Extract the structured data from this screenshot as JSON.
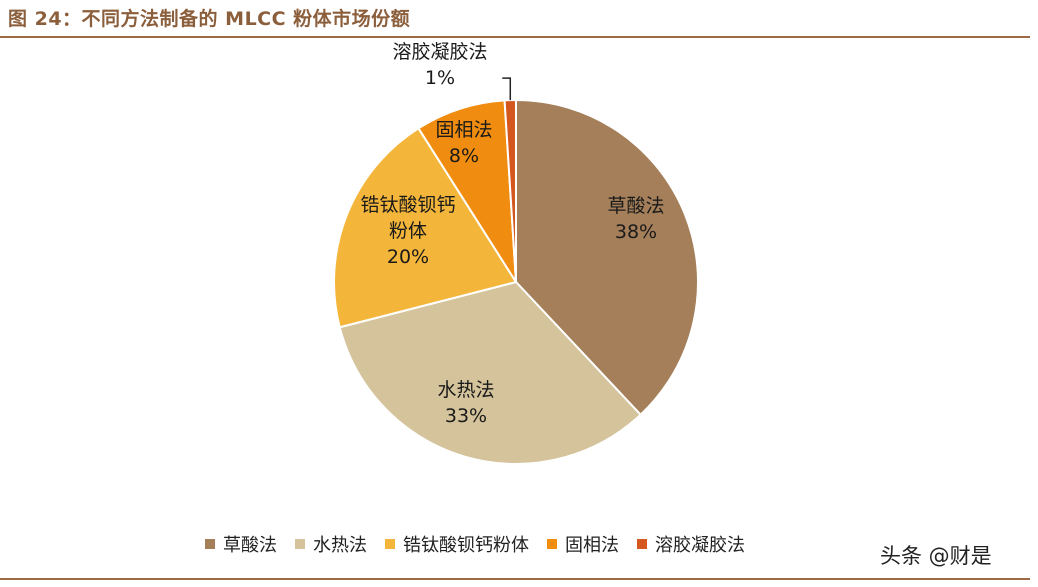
{
  "figure": {
    "title": "图 24：不同方法制备的 MLCC 粉体市场份额"
  },
  "watermark": "头条 @财是",
  "chart_data": {
    "type": "pie",
    "title": "",
    "start": "top, clockwise",
    "slices": [
      {
        "name": "草酸法",
        "value": 38,
        "label": "38%",
        "color": "#A47F59",
        "label_lines": [
          "草酸法",
          "38%"
        ]
      },
      {
        "name": "水热法",
        "value": 33,
        "label": "33%",
        "color": "#D4C39B",
        "label_lines": [
          "水热法",
          "33%"
        ]
      },
      {
        "name": "锆钛酸钡钙粉体",
        "value": 20,
        "label": "20%",
        "color": "#F4B63A",
        "label_lines": [
          "锆钛酸钡钙",
          "粉体",
          "20%"
        ]
      },
      {
        "name": "固相法",
        "value": 8,
        "label": "8%",
        "color": "#F08C0F",
        "label_lines": [
          "固相法",
          "8%"
        ]
      },
      {
        "name": "溶胶凝胶法",
        "value": 1,
        "label": "1%",
        "color": "#D4581E",
        "label_lines": [
          "溶胶凝胶法",
          "1%"
        ]
      }
    ],
    "legend": {
      "position": "bottom",
      "entries": [
        "草酸法",
        "水热法",
        "锆钛酸钡钙粉体",
        "固相法",
        "溶胶凝胶法"
      ]
    }
  }
}
